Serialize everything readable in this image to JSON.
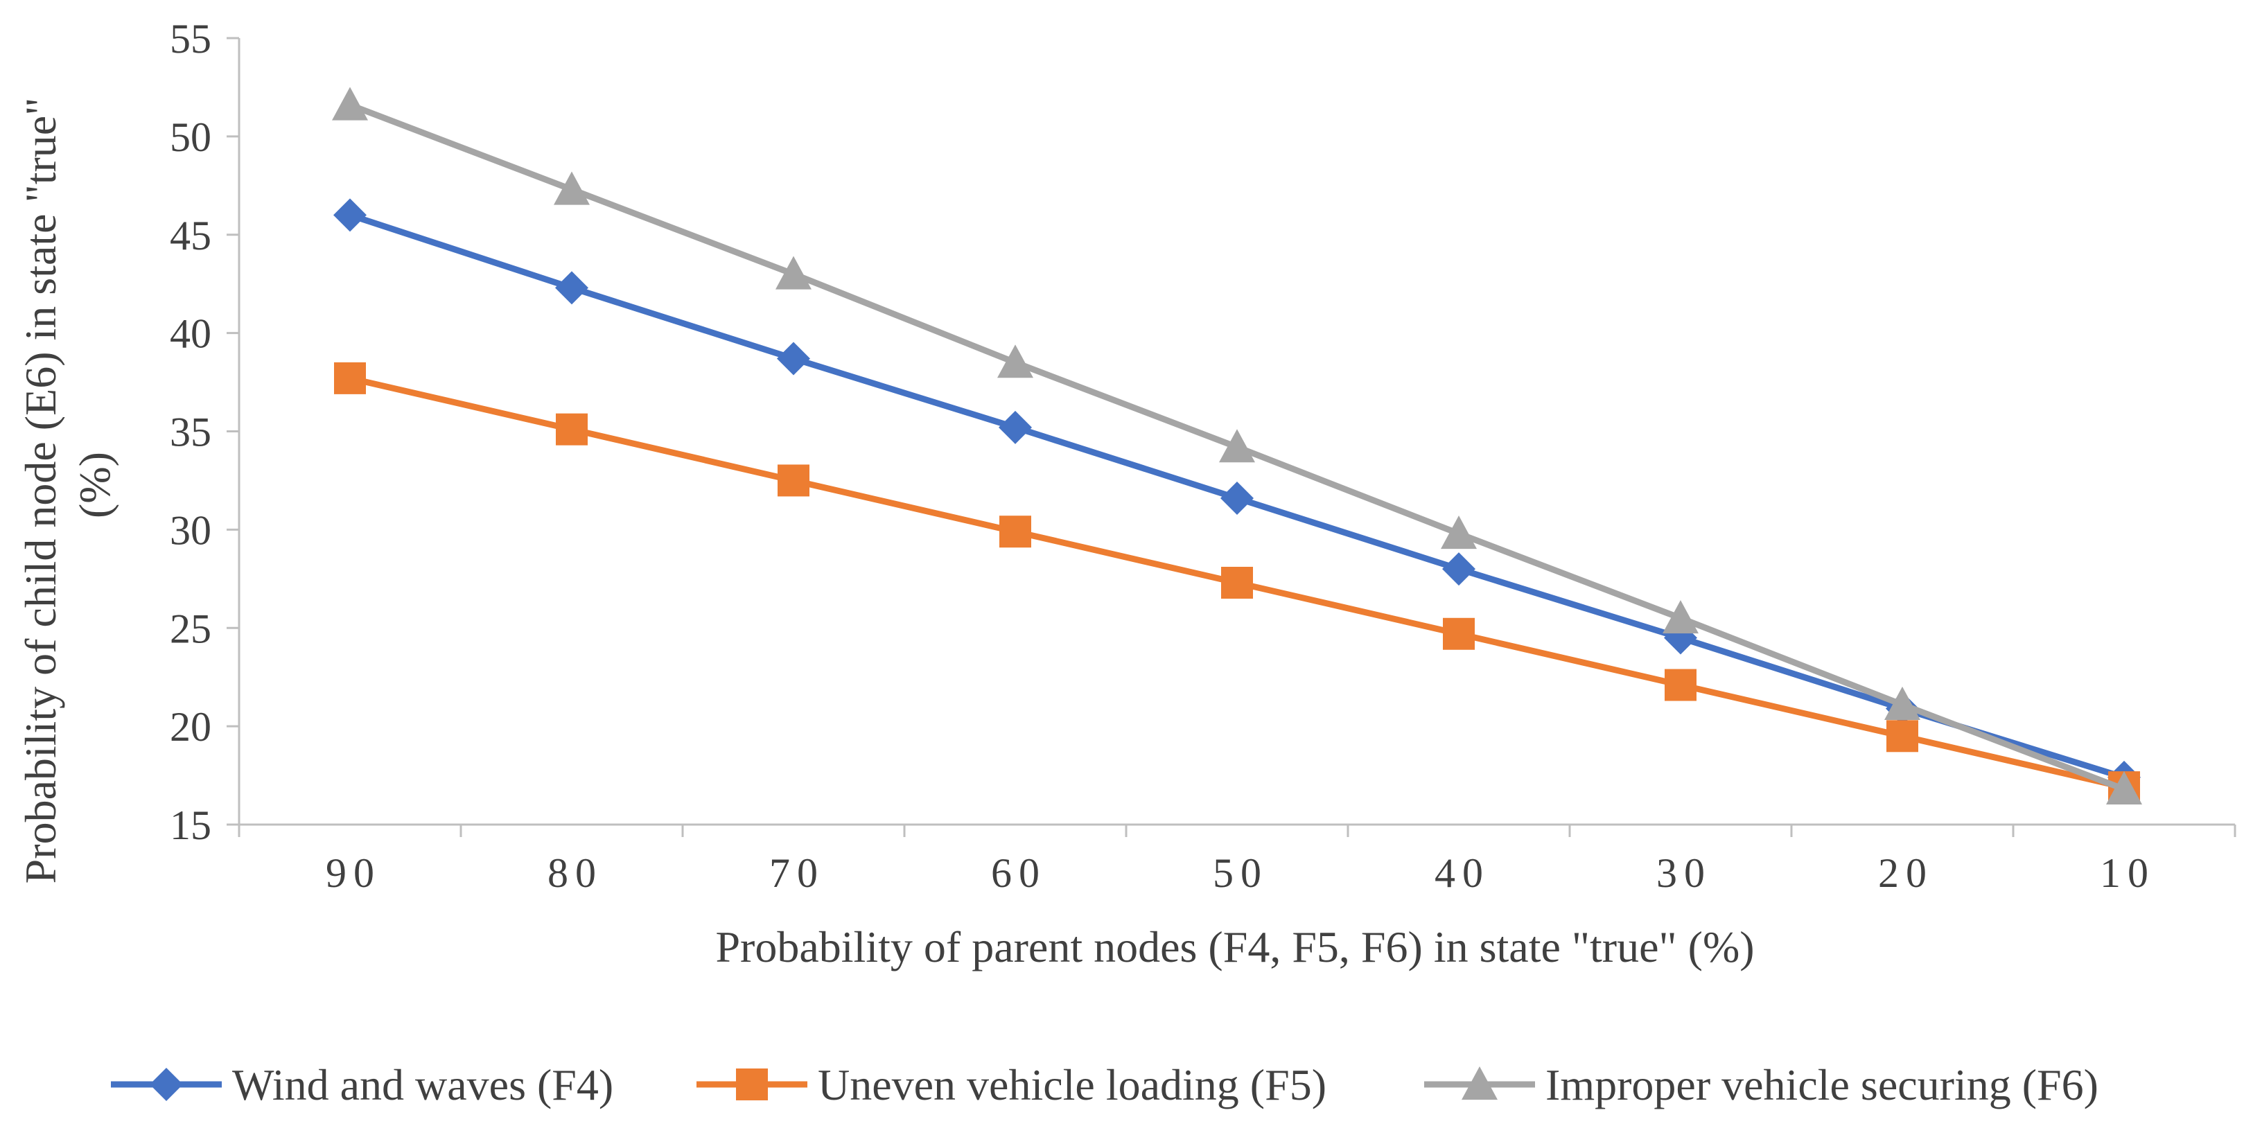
{
  "chart_data": {
    "type": "line",
    "title": "",
    "xlabel": "Probability of parent nodes (F4, F5, F6) in state \"true\"  (%)",
    "ylabel_lines": [
      "Probability of child node (E6) in state \"true\"",
      "(%)"
    ],
    "categories": [
      "90",
      "80",
      "70",
      "60",
      "50",
      "40",
      "30",
      "20",
      "10"
    ],
    "ylim": [
      15,
      55
    ],
    "yticks": [
      "15",
      "20",
      "25",
      "30",
      "35",
      "40",
      "45",
      "50",
      "55"
    ],
    "grid": false,
    "legend_position": "bottom",
    "series": [
      {
        "name": "Wind and waves (F4)",
        "color": "#4472C4",
        "marker": "diamond",
        "values": [
          46.0,
          42.3,
          38.7,
          35.2,
          31.6,
          28.0,
          24.5,
          20.9,
          17.4
        ]
      },
      {
        "name": "Uneven vehicle loading (F5)",
        "color": "#ED7D31",
        "marker": "square",
        "values": [
          37.7,
          35.1,
          32.5,
          29.9,
          27.3,
          24.7,
          22.1,
          19.5,
          16.9
        ]
      },
      {
        "name": "Improper vehicle securing (F6)",
        "color": "#A5A5A5",
        "marker": "triangle",
        "values": [
          51.6,
          47.3,
          43.0,
          38.5,
          34.2,
          29.8,
          25.5,
          21.1,
          16.8
        ]
      }
    ]
  }
}
